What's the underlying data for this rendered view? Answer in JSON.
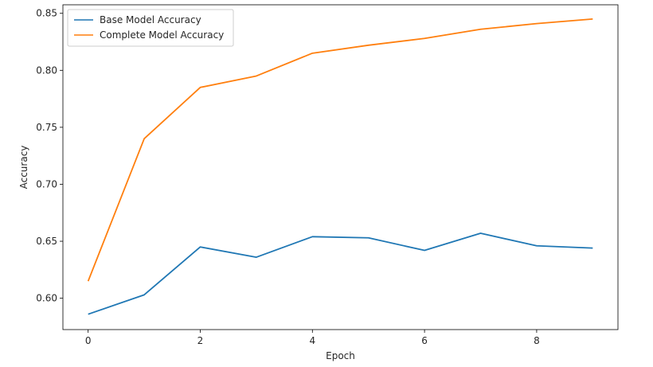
{
  "chart_data": {
    "type": "line",
    "title": "",
    "xlabel": "Epoch",
    "ylabel": "Accuracy",
    "x": [
      0,
      1,
      2,
      3,
      4,
      5,
      6,
      7,
      8,
      9
    ],
    "xlim": [
      -0.45,
      9.45
    ],
    "ylim": [
      0.5725,
      0.8575
    ],
    "xticks": [
      0,
      2,
      4,
      6,
      8
    ],
    "yticks": [
      0.6,
      0.65,
      0.7,
      0.75,
      0.8,
      0.85
    ],
    "xtick_labels": [
      "0",
      "2",
      "4",
      "6",
      "8"
    ],
    "ytick_labels": [
      "0.60",
      "0.65",
      "0.70",
      "0.75",
      "0.80",
      "0.85"
    ],
    "grid": false,
    "legend_position": "top-left",
    "series": [
      {
        "name": "Base Model Accuracy",
        "color": "#1f77b4",
        "values": [
          0.586,
          0.603,
          0.645,
          0.636,
          0.654,
          0.653,
          0.642,
          0.657,
          0.646,
          0.644
        ]
      },
      {
        "name": "Complete Model Accuracy",
        "color": "#ff7f0e",
        "values": [
          0.615,
          0.74,
          0.785,
          0.795,
          0.815,
          0.822,
          0.828,
          0.836,
          0.841,
          0.845
        ]
      }
    ]
  }
}
